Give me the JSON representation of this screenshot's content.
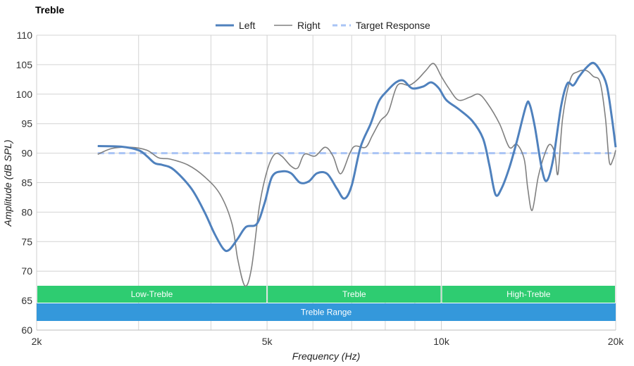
{
  "chart_data": {
    "type": "line",
    "title": "Treble",
    "xlabel": "Frequency (Hz)",
    "ylabel": "Amplitude (dB SPL)",
    "x_scale": "log",
    "xlim": [
      2000,
      20000
    ],
    "ylim": [
      60,
      110
    ],
    "grid": true,
    "legend_position": "top-center",
    "x_ticks": [
      {
        "value": 2000,
        "label": "2k"
      },
      {
        "value": 5000,
        "label": "5k"
      },
      {
        "value": 10000,
        "label": "10k"
      },
      {
        "value": 20000,
        "label": "20k"
      }
    ],
    "x_minor_gridlines": [
      3000,
      4000,
      6000,
      7000,
      8000,
      9000
    ],
    "y_ticks": [
      60,
      65,
      70,
      75,
      80,
      85,
      90,
      95,
      100,
      105,
      110
    ],
    "series": [
      {
        "name": "Left",
        "color": "#4f81bd",
        "style": "solid-thick",
        "points": [
          [
            2550,
            91.2
          ],
          [
            2800,
            91.1
          ],
          [
            3000,
            90.5
          ],
          [
            3100,
            89.5
          ],
          [
            3200,
            88.3
          ],
          [
            3300,
            88.0
          ],
          [
            3450,
            87.2
          ],
          [
            3700,
            84.0
          ],
          [
            3900,
            80.0
          ],
          [
            4050,
            76.5
          ],
          [
            4200,
            73.8
          ],
          [
            4300,
            73.6
          ],
          [
            4450,
            75.5
          ],
          [
            4600,
            77.5
          ],
          [
            4800,
            78.0
          ],
          [
            4950,
            81.5
          ],
          [
            5100,
            86.0
          ],
          [
            5300,
            86.9
          ],
          [
            5500,
            86.6
          ],
          [
            5700,
            85.0
          ],
          [
            5900,
            85.2
          ],
          [
            6100,
            86.6
          ],
          [
            6350,
            86.5
          ],
          [
            6600,
            84.0
          ],
          [
            6800,
            82.3
          ],
          [
            7000,
            84.5
          ],
          [
            7250,
            91.0
          ],
          [
            7550,
            95.0
          ],
          [
            7800,
            98.8
          ],
          [
            8050,
            100.5
          ],
          [
            8350,
            102.0
          ],
          [
            8600,
            102.3
          ],
          [
            8900,
            101.0
          ],
          [
            9300,
            101.3
          ],
          [
            9600,
            102.0
          ],
          [
            9900,
            101.0
          ],
          [
            10200,
            99.0
          ],
          [
            10700,
            97.5
          ],
          [
            11300,
            95.5
          ],
          [
            11800,
            92.5
          ],
          [
            12100,
            88.0
          ],
          [
            12400,
            83.0
          ],
          [
            12700,
            84.0
          ],
          [
            13100,
            87.5
          ],
          [
            13500,
            92.0
          ],
          [
            14000,
            98.0
          ],
          [
            14200,
            98.3
          ],
          [
            14500,
            94.5
          ],
          [
            14900,
            87.5
          ],
          [
            15200,
            85.3
          ],
          [
            15600,
            89.0
          ],
          [
            16100,
            98.0
          ],
          [
            16500,
            101.8
          ],
          [
            16900,
            101.5
          ],
          [
            17300,
            103.0
          ],
          [
            17800,
            104.5
          ],
          [
            18300,
            105.3
          ],
          [
            18800,
            104.0
          ],
          [
            19300,
            101.5
          ],
          [
            19700,
            96.0
          ],
          [
            20000,
            91.0
          ]
        ]
      },
      {
        "name": "Right",
        "color": "#808080",
        "style": "solid-thin",
        "points": [
          [
            2550,
            89.8
          ],
          [
            2700,
            90.8
          ],
          [
            2900,
            91.0
          ],
          [
            3100,
            90.5
          ],
          [
            3250,
            89.2
          ],
          [
            3400,
            89.0
          ],
          [
            3650,
            88.0
          ],
          [
            3900,
            86.0
          ],
          [
            4150,
            83.0
          ],
          [
            4350,
            78.0
          ],
          [
            4450,
            72.0
          ],
          [
            4580,
            67.5
          ],
          [
            4700,
            70.5
          ],
          [
            4850,
            81.0
          ],
          [
            5000,
            87.0
          ],
          [
            5150,
            89.8
          ],
          [
            5300,
            89.5
          ],
          [
            5500,
            87.8
          ],
          [
            5650,
            87.5
          ],
          [
            5800,
            89.8
          ],
          [
            6050,
            89.5
          ],
          [
            6300,
            91.0
          ],
          [
            6500,
            89.5
          ],
          [
            6700,
            86.5
          ],
          [
            6950,
            90.0
          ],
          [
            7100,
            91.2
          ],
          [
            7400,
            91.0
          ],
          [
            7600,
            93.0
          ],
          [
            7850,
            95.5
          ],
          [
            8100,
            97.0
          ],
          [
            8400,
            101.5
          ],
          [
            8800,
            101.5
          ],
          [
            9100,
            102.5
          ],
          [
            9400,
            104.0
          ],
          [
            9700,
            105.2
          ],
          [
            10000,
            103.0
          ],
          [
            10300,
            101.0
          ],
          [
            10700,
            99.0
          ],
          [
            11200,
            99.5
          ],
          [
            11600,
            100.0
          ],
          [
            12000,
            98.5
          ],
          [
            12600,
            95.0
          ],
          [
            13100,
            91.0
          ],
          [
            13500,
            91.5
          ],
          [
            13900,
            89.0
          ],
          [
            14100,
            84.0
          ],
          [
            14350,
            80.3
          ],
          [
            14700,
            86.0
          ],
          [
            15100,
            90.0
          ],
          [
            15400,
            91.5
          ],
          [
            15700,
            90.0
          ],
          [
            15900,
            86.5
          ],
          [
            16200,
            96.0
          ],
          [
            16700,
            102.5
          ],
          [
            17200,
            103.8
          ],
          [
            17800,
            104.0
          ],
          [
            18300,
            103.0
          ],
          [
            18800,
            102.0
          ],
          [
            19200,
            96.0
          ],
          [
            19500,
            88.5
          ],
          [
            19800,
            89.0
          ],
          [
            20000,
            90.5
          ]
        ]
      },
      {
        "name": "Target Response",
        "color": "#a9c4f5",
        "style": "dashed-thick",
        "points": [
          [
            2550,
            90
          ],
          [
            20000,
            90
          ]
        ]
      }
    ],
    "bands": [
      {
        "label": "Low-Treble",
        "x_start": 2000,
        "x_end": 5000,
        "color": "#2ecc71",
        "row": 1
      },
      {
        "label": "Treble",
        "x_start": 5000,
        "x_end": 10000,
        "color": "#2ecc71",
        "row": 1
      },
      {
        "label": "High-Treble",
        "x_start": 10000,
        "x_end": 20000,
        "color": "#2ecc71",
        "row": 1
      },
      {
        "label": "Treble Range",
        "x_start": 2000,
        "x_end": 20000,
        "color": "#3498db",
        "row": 2
      }
    ]
  }
}
